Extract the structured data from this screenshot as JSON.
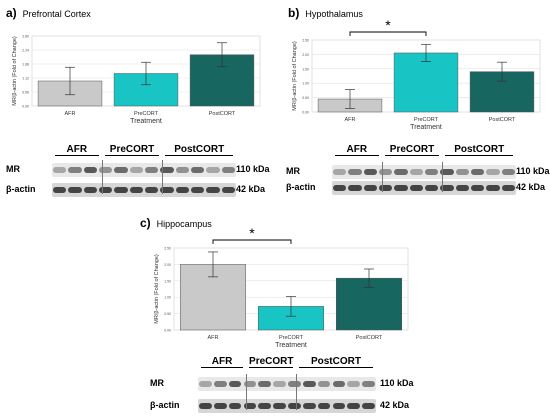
{
  "charts": [
    {
      "panel": "a)",
      "title": "Prefrontal Cortex",
      "ylabel": "MR/β-actin (Fold of Change)",
      "xlabel": "Treatment",
      "categories": [
        "AFR",
        "PreCORT",
        "PostCORT"
      ],
      "values": [
        1.0,
        1.3,
        2.05
      ],
      "errors": [
        0.55,
        0.45,
        0.48
      ],
      "ylim": [
        0,
        2.8
      ],
      "colors": [
        "#c9c9c9",
        "#19c4c4",
        "#176660"
      ],
      "significance": ""
    },
    {
      "panel": "b)",
      "title": "Hypothalamus",
      "ylabel": "MR/β-actin (Fold of Change)",
      "xlabel": "Treatment",
      "categories": [
        "AFR",
        "PreCORT",
        "PostCORT"
      ],
      "values": [
        0.45,
        2.05,
        1.4
      ],
      "errors": [
        0.33,
        0.3,
        0.33
      ],
      "ylim": [
        0,
        2.5
      ],
      "colors": [
        "#c9c9c9",
        "#19c4c4",
        "#176660"
      ],
      "significance": "*"
    },
    {
      "panel": "c)",
      "title": "Hippocampus",
      "ylabel": "MR/β-actin (Fold of Change)",
      "xlabel": "Treatment",
      "categories": [
        "AFR",
        "PreCORT",
        "PostCORT"
      ],
      "values": [
        2.0,
        0.72,
        1.58
      ],
      "errors": [
        0.38,
        0.3,
        0.28
      ],
      "ylim": [
        0,
        2.5
      ],
      "colors": [
        "#c9c9c9",
        "#19c4c4",
        "#176660"
      ],
      "significance": "*"
    }
  ],
  "blots": [
    {
      "groups": [
        "AFR",
        "PreCORT",
        "PostCORT"
      ],
      "row1_label": "MR",
      "row1_kda": "110 kDa",
      "row2_label": "β-actin",
      "row2_kda": "42 kDa"
    },
    {
      "groups": [
        "AFR",
        "PreCORT",
        "PostCORT"
      ],
      "row1_label": "MR",
      "row1_kda": "110 kDa",
      "row2_label": "β-actin",
      "row2_kda": "42 kDa"
    },
    {
      "groups": [
        "AFR",
        "PreCORT",
        "PostCORT"
      ],
      "row1_label": "MR",
      "row1_kda": "110 kDa",
      "row2_label": "β-actin",
      "row2_kda": "42 kDa"
    }
  ],
  "chart_data": [
    {
      "type": "bar",
      "title": "Prefrontal Cortex",
      "categories": [
        "AFR",
        "PreCORT",
        "PostCORT"
      ],
      "values": [
        1.0,
        1.3,
        2.05
      ],
      "error_bars": [
        0.55,
        0.45,
        0.48
      ],
      "xlabel": "Treatment",
      "ylabel": "MR/β-actin (Fold of Change)",
      "ylim": [
        0,
        2.8
      ],
      "grid": true
    },
    {
      "type": "bar",
      "title": "Hypothalamus",
      "categories": [
        "AFR",
        "PreCORT",
        "PostCORT"
      ],
      "values": [
        0.45,
        2.05,
        1.4
      ],
      "error_bars": [
        0.33,
        0.3,
        0.33
      ],
      "xlabel": "Treatment",
      "ylabel": "MR/β-actin (Fold of Change)",
      "ylim": [
        0,
        2.5
      ],
      "grid": true,
      "annotations": [
        "* AFR vs PreCORT"
      ]
    },
    {
      "type": "bar",
      "title": "Hippocampus",
      "categories": [
        "AFR",
        "PreCORT",
        "PostCORT"
      ],
      "values": [
        2.0,
        0.72,
        1.58
      ],
      "error_bars": [
        0.38,
        0.3,
        0.28
      ],
      "xlabel": "Treatment",
      "ylabel": "MR/β-actin (Fold of Change)",
      "ylim": [
        0,
        2.5
      ],
      "grid": true,
      "annotations": [
        "* AFR vs PreCORT"
      ]
    }
  ]
}
